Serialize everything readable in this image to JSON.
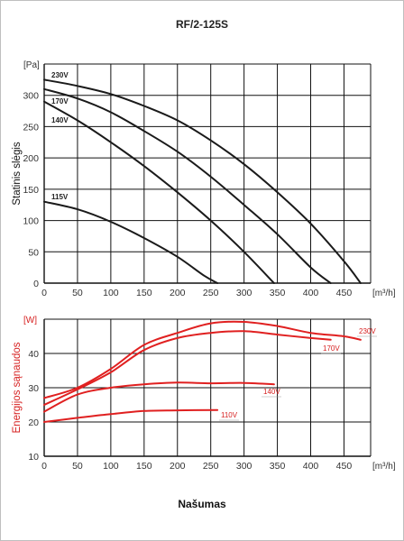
{
  "title": "RF/2-125S",
  "footer": "Našumas",
  "chart_data": [
    {
      "type": "line",
      "ylabel": "Statinis slėgis",
      "y_unit": "[Pa]",
      "x_unit": "[m³/h]",
      "xlim": [
        0,
        490
      ],
      "ylim": [
        0,
        350
      ],
      "x_ticks": [
        "0",
        "50",
        "100",
        "150",
        "200",
        "250",
        "300",
        "350",
        "400",
        "450"
      ],
      "y_ticks": [
        "0",
        "50",
        "100",
        "150",
        "200",
        "250",
        "300"
      ],
      "grid": true,
      "line_color": "#1a1a1a",
      "series": [
        {
          "name": "230V",
          "x": [
            0,
            50,
            100,
            150,
            200,
            250,
            300,
            350,
            400,
            450,
            475
          ],
          "y": [
            325,
            315,
            302,
            283,
            260,
            228,
            190,
            145,
            95,
            35,
            0
          ]
        },
        {
          "name": "170V",
          "x": [
            0,
            50,
            100,
            150,
            200,
            250,
            300,
            350,
            400,
            430
          ],
          "y": [
            310,
            295,
            273,
            243,
            210,
            170,
            125,
            78,
            25,
            0
          ]
        },
        {
          "name": "140V",
          "x": [
            0,
            50,
            100,
            150,
            200,
            250,
            300,
            345
          ],
          "y": [
            290,
            260,
            225,
            187,
            145,
            100,
            50,
            0
          ]
        },
        {
          "name": "115V",
          "x": [
            0,
            50,
            100,
            150,
            200,
            240,
            260
          ],
          "y": [
            130,
            118,
            98,
            72,
            42,
            12,
            0
          ]
        }
      ]
    },
    {
      "type": "line",
      "ylabel": "Energijos sąnaudos",
      "y_unit": "[W]",
      "x_unit": "[m³/h]",
      "xlim": [
        0,
        490
      ],
      "ylim": [
        10,
        50
      ],
      "x_ticks": [
        "0",
        "50",
        "100",
        "150",
        "200",
        "250",
        "300",
        "350",
        "400",
        "450"
      ],
      "y_ticks": [
        "10",
        "20",
        "30",
        "40"
      ],
      "grid": true,
      "line_color": "#e02020",
      "series": [
        {
          "name": "230V",
          "x": [
            0,
            50,
            100,
            150,
            200,
            250,
            300,
            350,
            400,
            450,
            475
          ],
          "y": [
            27,
            30,
            35.5,
            42.5,
            46,
            48.8,
            49.2,
            48,
            46,
            45,
            44
          ]
        },
        {
          "name": "170V",
          "x": [
            0,
            50,
            100,
            150,
            200,
            250,
            300,
            350,
            400,
            430
          ],
          "y": [
            25,
            29.5,
            34.5,
            41,
            44.5,
            46,
            46.5,
            45.5,
            44.5,
            44
          ]
        },
        {
          "name": "140V",
          "x": [
            0,
            50,
            100,
            150,
            200,
            250,
            300,
            345
          ],
          "y": [
            23,
            28,
            30,
            31,
            31.5,
            31.3,
            31.4,
            31
          ]
        },
        {
          "name": "110V",
          "x": [
            0,
            50,
            100,
            150,
            200,
            260
          ],
          "y": [
            20,
            21.2,
            22.3,
            23.2,
            23.4,
            23.5
          ]
        }
      ]
    }
  ]
}
